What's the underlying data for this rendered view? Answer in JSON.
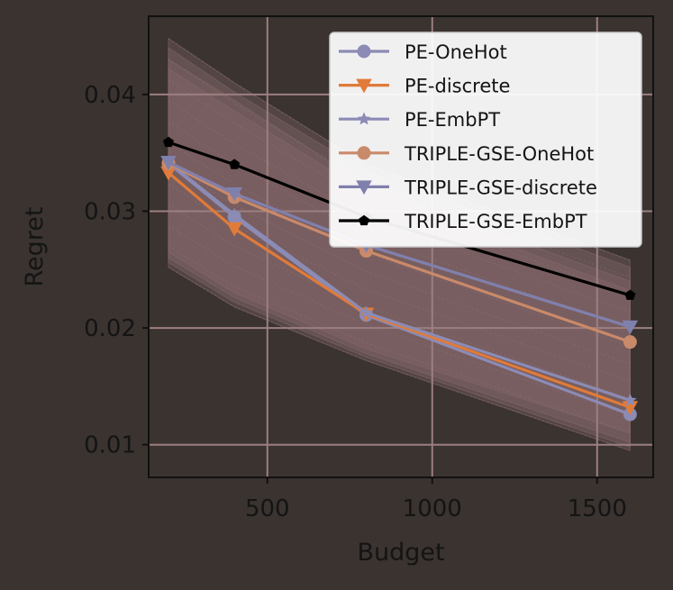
{
  "chart_data": {
    "type": "line",
    "xlabel": "Budget",
    "ylabel": "Regret",
    "xlim": [
      140,
      1670
    ],
    "ylim": [
      0.0072,
      0.0467
    ],
    "xticks": [
      500,
      1000,
      1500
    ],
    "xtick_labels": [
      "500",
      "1000",
      "1500"
    ],
    "yticks": [
      0.01,
      0.02,
      0.03,
      0.04
    ],
    "ytick_labels": [
      "0.01",
      "0.02",
      "0.03",
      "0.04"
    ],
    "grid": true,
    "legend_position": "top-right",
    "x": [
      200,
      400,
      800,
      1600
    ],
    "series": [
      {
        "name": "PE-OneHot",
        "values": [
          0.0341,
          0.0295,
          0.0211,
          0.0126
        ],
        "color": "#8b8bb5",
        "marker": "circle"
      },
      {
        "name": "PE-discrete",
        "values": [
          0.0333,
          0.0285,
          0.0212,
          0.0132
        ],
        "color": "#e07b39",
        "marker": "triangle-down"
      },
      {
        "name": "PE-EmbPT",
        "values": [
          0.0342,
          0.0297,
          0.0213,
          0.0138
        ],
        "color": "#8b8bb5",
        "marker": "star"
      },
      {
        "name": "TRIPLE-GSE-OneHot",
        "values": [
          0.0341,
          0.0312,
          0.0266,
          0.0188
        ],
        "color": "#c98a6a",
        "marker": "circle"
      },
      {
        "name": "TRIPLE-GSE-discrete",
        "values": [
          0.0342,
          0.0315,
          0.0271,
          0.0201
        ],
        "color": "#8080ad",
        "marker": "triangle-down"
      },
      {
        "name": "TRIPLE-GSE-EmbPT",
        "values": [
          0.0359,
          0.034,
          0.0295,
          0.0228
        ],
        "color": "#000000",
        "marker": "pentagon"
      }
    ],
    "bands": [
      {
        "upper": [
          0.0448,
          0.041,
          0.034,
          0.0258
        ],
        "lower": [
          0.0252,
          0.0218,
          0.0172,
          0.0095
        ]
      },
      {
        "upper": [
          0.043,
          0.0395,
          0.0322,
          0.024
        ],
        "lower": [
          0.026,
          0.0226,
          0.0178,
          0.0102
        ]
      },
      {
        "upper": [
          0.0422,
          0.0386,
          0.0316,
          0.0232
        ],
        "lower": [
          0.0265,
          0.023,
          0.0182,
          0.011
        ]
      },
      {
        "upper": [
          0.044,
          0.0402,
          0.0334,
          0.0252
        ],
        "lower": [
          0.0256,
          0.0222,
          0.0175,
          0.0098
        ]
      }
    ],
    "band_color": "#8a6a6c"
  },
  "colors": {
    "background": "#3a3330",
    "grid": "#9c7f80",
    "axis": "#111111",
    "legend_bg": "#ffffff"
  }
}
